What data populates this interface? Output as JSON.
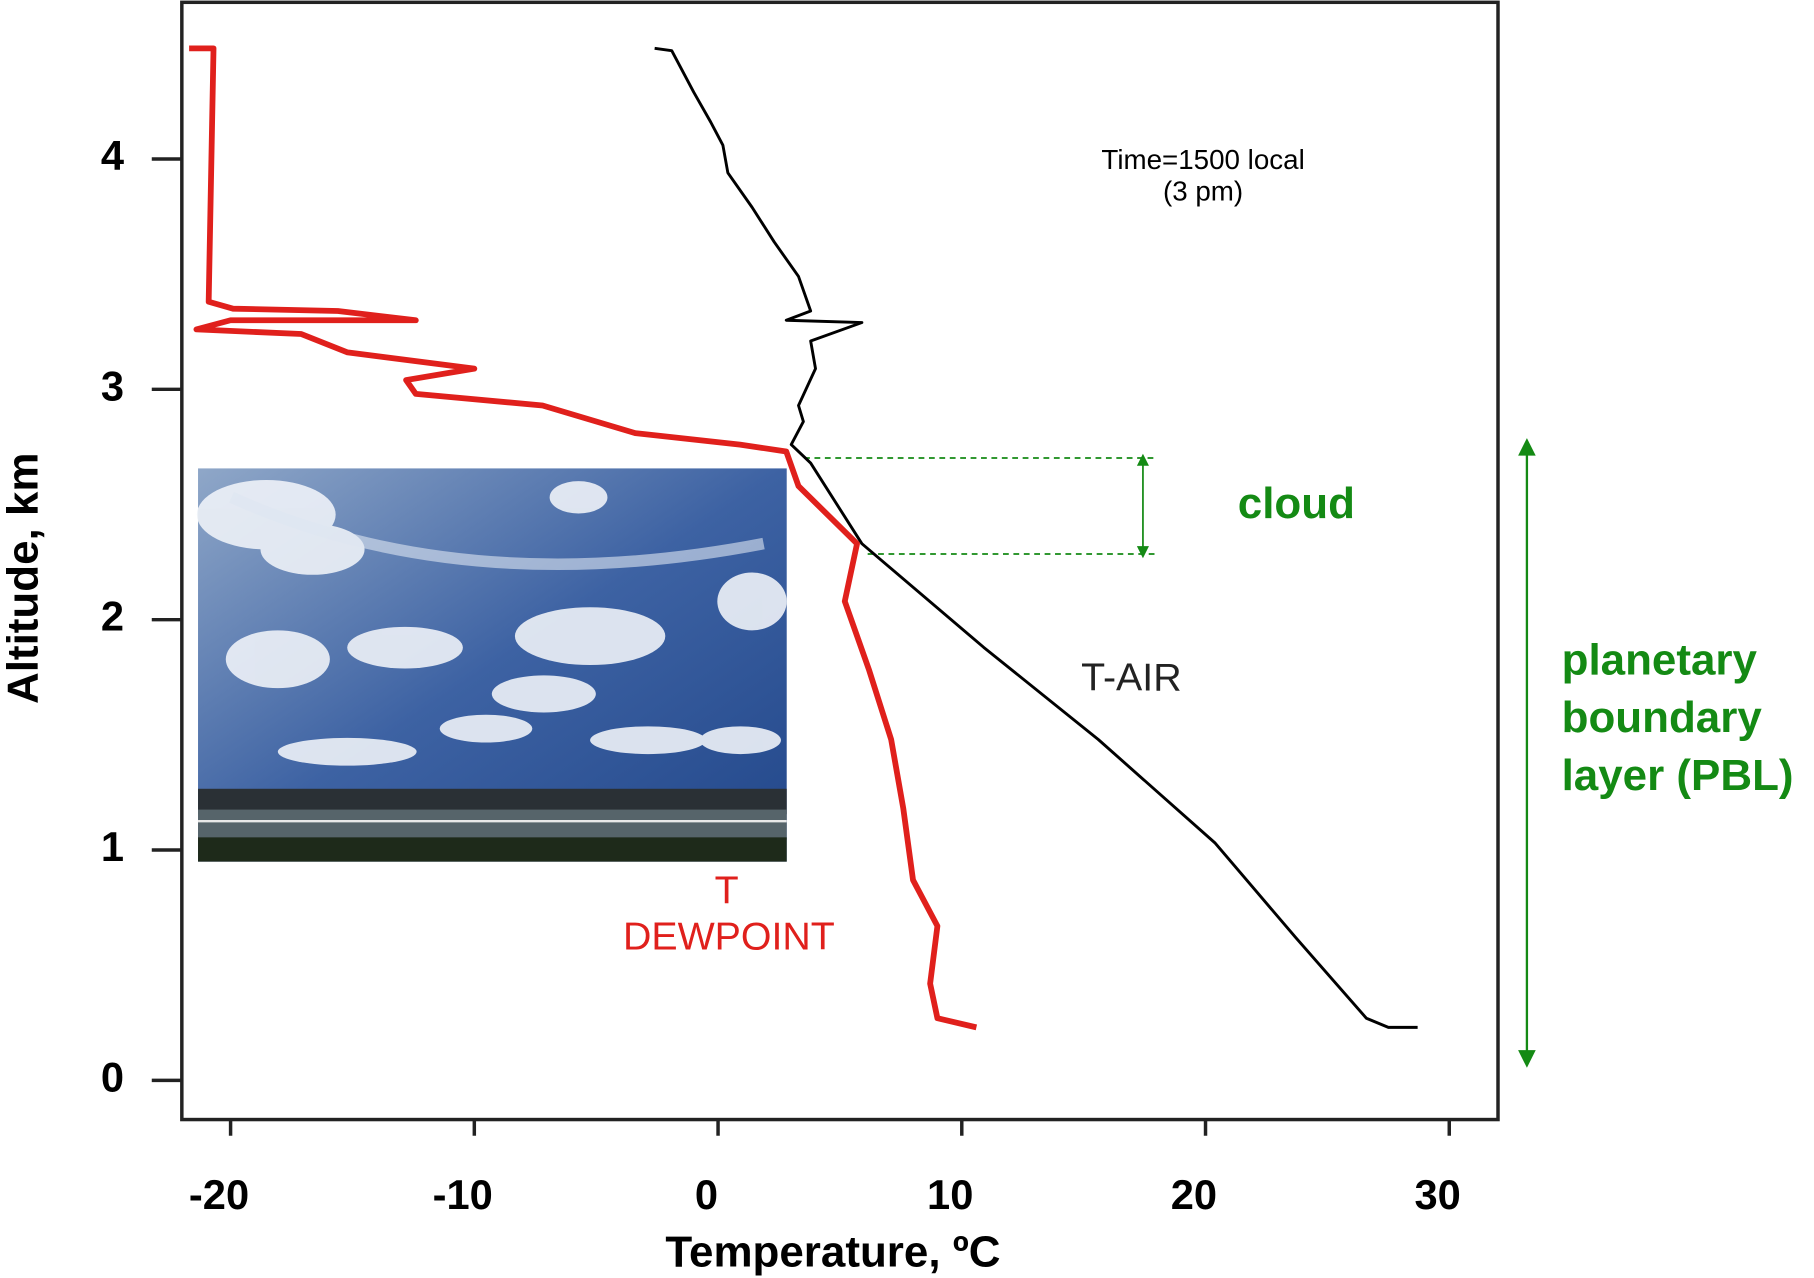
{
  "chart_data": {
    "type": "line",
    "annotations": {
      "time": "Time=1500 local",
      "time_note": "(3 pm)",
      "cloud": "cloud",
      "pbl": [
        "planetary",
        "boundary",
        "layer (PBL)"
      ],
      "dewpoint": [
        "T",
        "DEWPOINT"
      ]
    },
    "x_label": "Temperature, ºC",
    "y_label": "Altitude, km",
    "xlim": [
      -22.0,
      32.0
    ],
    "ylim": [
      -0.17,
      4.68
    ],
    "xticks": [
      -20,
      -10,
      0,
      10,
      20,
      30
    ],
    "yticks": [
      0,
      1,
      2,
      3,
      4
    ],
    "series": [
      {
        "name": "T-AIR",
        "color": "#000000",
        "x": [
          -2.6,
          -1.9,
          -1.0,
          -0.3,
          0.2,
          0.4,
          1.4,
          2.3,
          3.3,
          3.8,
          2.8,
          5.9,
          3.8,
          4.0,
          3.3,
          3.5,
          3.0,
          3.8,
          5.9,
          10.9,
          15.6,
          20.4,
          23.7,
          26.6,
          27.5,
          28.7
        ],
        "values": [
          4.48,
          4.47,
          4.29,
          4.16,
          4.06,
          3.94,
          3.79,
          3.64,
          3.49,
          3.34,
          3.3,
          3.29,
          3.21,
          3.09,
          2.93,
          2.86,
          2.76,
          2.68,
          2.33,
          1.88,
          1.48,
          1.03,
          0.62,
          0.27,
          0.23,
          0.23
        ]
      },
      {
        "name": "DEWPOINT",
        "color": "#e0201c",
        "x": [
          -21.7,
          -20.7,
          -20.9,
          -19.9,
          -15.6,
          -12.4,
          -20.0,
          -21.4,
          -17.1,
          -15.2,
          -10.0,
          -12.8,
          -12.4,
          -7.2,
          -3.4,
          0.9,
          2.8,
          3.3,
          5.7,
          5.2,
          6.2,
          7.1,
          7.6,
          8.0,
          9.0,
          8.7,
          9.0,
          10.6
        ],
        "values": [
          4.48,
          4.48,
          3.38,
          3.35,
          3.34,
          3.3,
          3.3,
          3.26,
          3.24,
          3.16,
          3.09,
          3.04,
          2.98,
          2.93,
          2.81,
          2.76,
          2.73,
          2.58,
          2.33,
          2.08,
          1.78,
          1.48,
          1.18,
          0.87,
          0.67,
          0.42,
          0.27,
          0.23
        ]
      }
    ]
  }
}
